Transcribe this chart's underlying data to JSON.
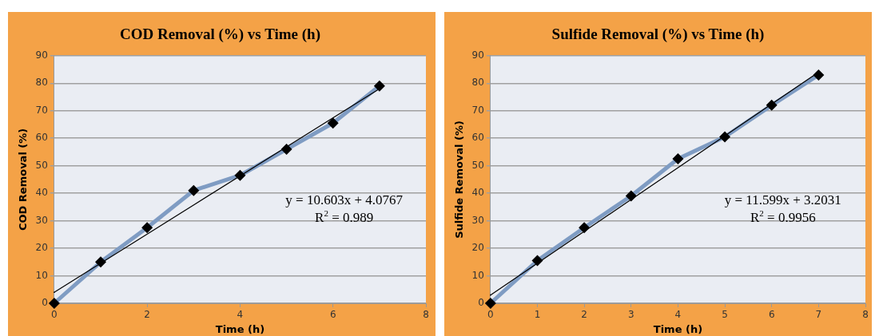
{
  "chart_data": [
    {
      "type": "line",
      "title": "COD Removal (%) vs Time (h)",
      "xlabel": "Time (h)",
      "ylabel": "COD Removal (%)",
      "x": [
        0,
        1,
        2,
        3,
        4,
        5,
        6,
        7
      ],
      "series": [
        {
          "color": "#7f9cc3",
          "values": [
            0,
            15,
            27.5,
            41,
            46.5,
            56,
            65.5,
            79
          ],
          "marker": "diamond"
        },
        {
          "type": "line",
          "color": "#000000",
          "values": [
            4,
            null,
            null,
            null,
            null,
            null,
            null,
            78
          ],
          "marker": "none"
        }
      ],
      "xlim": [
        0,
        8
      ],
      "xticks": [
        0,
        2,
        4,
        6,
        8
      ],
      "ylim": [
        0,
        90
      ],
      "yticks": [
        0,
        10,
        20,
        30,
        40,
        50,
        60,
        70,
        80,
        90
      ],
      "grid": "y",
      "legend": false,
      "annotations": [
        "y = 10.603x + 4.0767",
        "R$^{2}$ = 0.989"
      ]
    },
    {
      "type": "line",
      "title": "Sulfide Removal (%) vs Time (h)",
      "xlabel": "Time (h)",
      "ylabel": "Sulfide Removal (%)",
      "x": [
        0,
        1,
        2,
        3,
        4,
        5,
        6,
        7
      ],
      "series": [
        {
          "color": "#7f9cc3",
          "values": [
            0,
            15.5,
            27.5,
            39,
            52.5,
            60.5,
            72,
            83
          ],
          "marker": "diamond"
        },
        {
          "type": "line",
          "color": "#000000",
          "values": [
            3,
            null,
            null,
            null,
            null,
            null,
            null,
            84
          ],
          "marker": "none"
        }
      ],
      "xlim": [
        0,
        8
      ],
      "xticks": [
        0,
        1,
        2,
        3,
        4,
        5,
        6,
        7,
        8
      ],
      "ylim": [
        0,
        90
      ],
      "yticks": [
        0,
        10,
        20,
        30,
        40,
        50,
        60,
        70,
        80,
        90
      ],
      "grid": "y",
      "legend": false,
      "annotations": [
        "y = 11.599x + 3.2031",
        "R$^{2}$ = 0.9956"
      ]
    }
  ]
}
